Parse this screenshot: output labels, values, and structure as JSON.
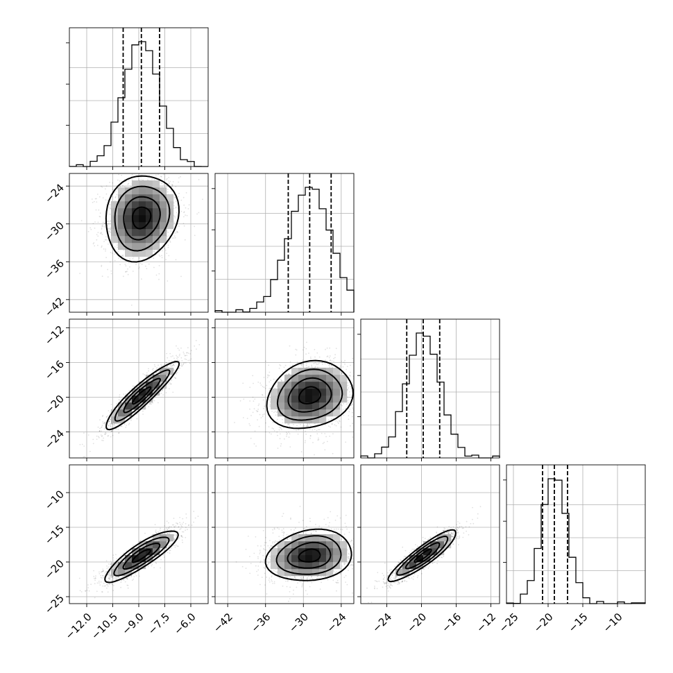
{
  "chart_data": {
    "type": "corner",
    "parameters": [
      {
        "range": [
          -13,
          -5
        ],
        "ticks": [
          -12.0,
          -10.5,
          -9.0,
          -7.5,
          -6.0
        ],
        "tick_labels": [
          "−12.0",
          "−10.5",
          "−9.0",
          "−7.5",
          "−6.0"
        ],
        "mean": -8.85,
        "std": 1.05,
        "quantiles": [
          -9.9,
          -8.85,
          -7.8
        ]
      },
      {
        "range": [
          -44,
          -22
        ],
        "ticks": [
          -42,
          -36,
          -30,
          -24
        ],
        "tick_labels": [
          "−42",
          "−36",
          "−30",
          "−24"
        ],
        "x_ticks": [
          -42,
          -36,
          -30,
          -24
        ],
        "x_tick_labels": [
          "−42",
          "−36",
          "−30",
          "−24"
        ],
        "mean": -29.0,
        "std": 3.4,
        "quantiles": [
          -32.4,
          -29.0,
          -25.6
        ]
      },
      {
        "range": [
          -27,
          -11
        ],
        "ticks": [
          -24,
          -20,
          -16,
          -12
        ],
        "tick_labels": [
          "−24",
          "−20",
          "−16",
          "−12"
        ],
        "mean": -19.8,
        "std": 1.95,
        "quantiles": [
          -21.7,
          -19.8,
          -17.9
        ]
      },
      {
        "range": [
          -26,
          -6
        ],
        "ticks": [
          -25,
          -20,
          -15,
          -10
        ],
        "tick_labels": [
          "−25",
          "−20",
          "−15",
          "−10"
        ],
        "mean": -19.1,
        "std": 1.85,
        "quantiles": [
          -20.8,
          -19.1,
          -17.2
        ]
      }
    ],
    "correlations": {
      "0-1": 0.12,
      "0-2": 0.92,
      "0-3": 0.86,
      "1-2": 0.18,
      "1-3": 0.16,
      "2-3": 0.9
    },
    "histogram_bins": 20,
    "grid": true
  }
}
